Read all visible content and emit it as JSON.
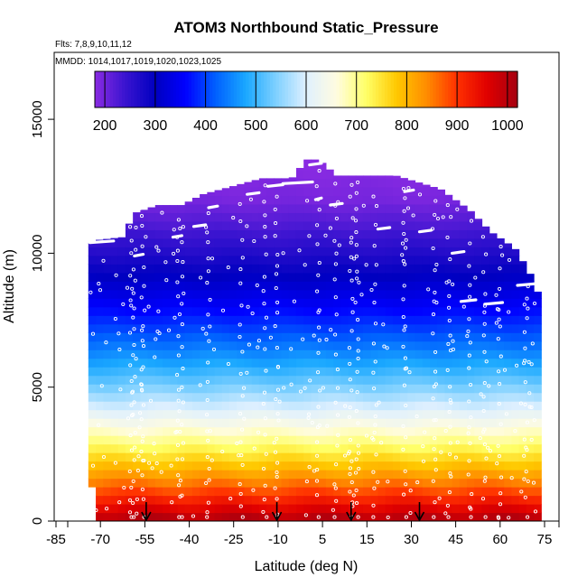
{
  "chart_data": {
    "type": "heatmap",
    "title": "ATOM3 Northbound Static_Pressure",
    "flights_label": "Flts: 7,8,9,10,11,12",
    "dates_label": "MMDD: 1014,1017,1019,1020,1023,1025",
    "xlabel": "Latitude (deg N)",
    "ylabel": "Altitude (m)",
    "xlim": [
      -85,
      85
    ],
    "ylim": [
      0,
      17500
    ],
    "x_tick_labels": [
      "-85",
      "-70",
      "-55",
      "-40",
      "-25",
      "-10",
      "5",
      "15",
      "30",
      "45",
      "60",
      "75"
    ],
    "y_tick_labels": [
      "0",
      "5000",
      "10000",
      "15000"
    ],
    "y_ticks": [
      0,
      5000,
      10000,
      15000
    ],
    "colorbar": {
      "label_values": [
        "200",
        "300",
        "400",
        "500",
        "600",
        "700",
        "800",
        "900",
        "1000"
      ],
      "range": [
        180,
        1020
      ],
      "ticks": [
        200,
        300,
        400,
        500,
        600,
        700,
        800,
        900,
        1000
      ],
      "colors": [
        "#8a2be2",
        "#3a14d0",
        "#0000c0",
        "#0000ff",
        "#0060ff",
        "#1aa8ff",
        "#7ed0ff",
        "#dff0ff",
        "#fffce0",
        "#ffff66",
        "#ffc800",
        "#ff8c00",
        "#ff3000",
        "#e00000",
        "#a50010"
      ]
    },
    "pressure_profile": [
      {
        "alt": 0,
        "p": 1013
      },
      {
        "alt": 1000,
        "p": 899
      },
      {
        "alt": 2000,
        "p": 795
      },
      {
        "alt": 3000,
        "p": 701
      },
      {
        "alt": 4000,
        "p": 616
      },
      {
        "alt": 5000,
        "p": 540
      },
      {
        "alt": 6000,
        "p": 472
      },
      {
        "alt": 7000,
        "p": 411
      },
      {
        "alt": 8000,
        "p": 356
      },
      {
        "alt": 9000,
        "p": 308
      },
      {
        "alt": 10000,
        "p": 265
      },
      {
        "alt": 11000,
        "p": 227
      },
      {
        "alt": 12000,
        "p": 194
      },
      {
        "alt": 13500,
        "p": 180
      }
    ],
    "coverage_top": [
      {
        "lat": -74,
        "top": 10300
      },
      {
        "lat": -70,
        "top": 10500
      },
      {
        "lat": -62,
        "top": 10600
      },
      {
        "lat": -58,
        "top": 11500
      },
      {
        "lat": -50,
        "top": 11800
      },
      {
        "lat": -42,
        "top": 11800
      },
      {
        "lat": -35,
        "top": 12200
      },
      {
        "lat": -25,
        "top": 12500
      },
      {
        "lat": -15,
        "top": 12800
      },
      {
        "lat": -5,
        "top": 12800
      },
      {
        "lat": 0,
        "top": 13500
      },
      {
        "lat": 4,
        "top": 13500
      },
      {
        "lat": 10,
        "top": 12900
      },
      {
        "lat": 20,
        "top": 12900
      },
      {
        "lat": 30,
        "top": 12900
      },
      {
        "lat": 45,
        "top": 12400
      },
      {
        "lat": 55,
        "top": 11600
      },
      {
        "lat": 62,
        "top": 10800
      },
      {
        "lat": 70,
        "top": 10200
      },
      {
        "lat": 75,
        "top": 9300
      },
      {
        "lat": 78,
        "top": 8500
      },
      {
        "lat": 79,
        "top": 8000
      }
    ],
    "coverage_left_edge": [
      {
        "alt": 0,
        "lat": -72
      },
      {
        "alt": 10300,
        "lat": -74
      }
    ],
    "coverage_right_edge": [
      {
        "alt": 0,
        "lat": 78
      },
      {
        "alt": 8500,
        "lat": 78
      }
    ],
    "arrow_latitudes": [
      -54,
      -10,
      15,
      38
    ],
    "vertical_profiles": [
      -59,
      -58,
      -55,
      -43,
      -42,
      -33,
      -22,
      -14,
      -10,
      4,
      10,
      15,
      17,
      23,
      33,
      43,
      48,
      55,
      60,
      65,
      74
    ],
    "horizontal_legs": [
      {
        "lat_start": -73,
        "lat_end": -65,
        "alt": 10400
      },
      {
        "lat_start": -59,
        "lat_end": -56,
        "alt": 11600
      },
      {
        "lat_start": -58,
        "lat_end": -55,
        "alt": 9900
      },
      {
        "lat_start": -45,
        "lat_end": -42,
        "alt": 10600
      },
      {
        "lat_start": -38,
        "lat_end": -34,
        "alt": 11000
      },
      {
        "lat_start": -33,
        "lat_end": -30,
        "alt": 11700
      },
      {
        "lat_start": -20,
        "lat_end": -16,
        "alt": 12200
      },
      {
        "lat_start": -13,
        "lat_end": -8,
        "alt": 12500
      },
      {
        "lat_start": -8,
        "lat_end": 2,
        "alt": 12600
      },
      {
        "lat_start": 1,
        "lat_end": 5,
        "alt": 13300
      },
      {
        "lat_start": 3,
        "lat_end": 5,
        "alt": 12000
      },
      {
        "lat_start": 8,
        "lat_end": 12,
        "alt": 11800
      },
      {
        "lat_start": 24,
        "lat_end": 28,
        "alt": 10900
      },
      {
        "lat_start": 33,
        "lat_end": 36,
        "alt": 12300
      },
      {
        "lat_start": 38,
        "lat_end": 42,
        "alt": 10800
      },
      {
        "lat_start": 49,
        "lat_end": 53,
        "alt": 10000
      },
      {
        "lat_start": 52,
        "lat_end": 57,
        "alt": 8200
      },
      {
        "lat_start": 60,
        "lat_end": 66,
        "alt": 8100
      },
      {
        "lat_start": 71,
        "lat_end": 77,
        "alt": 8800
      }
    ],
    "grid": false,
    "legend": "top (color bar)"
  }
}
